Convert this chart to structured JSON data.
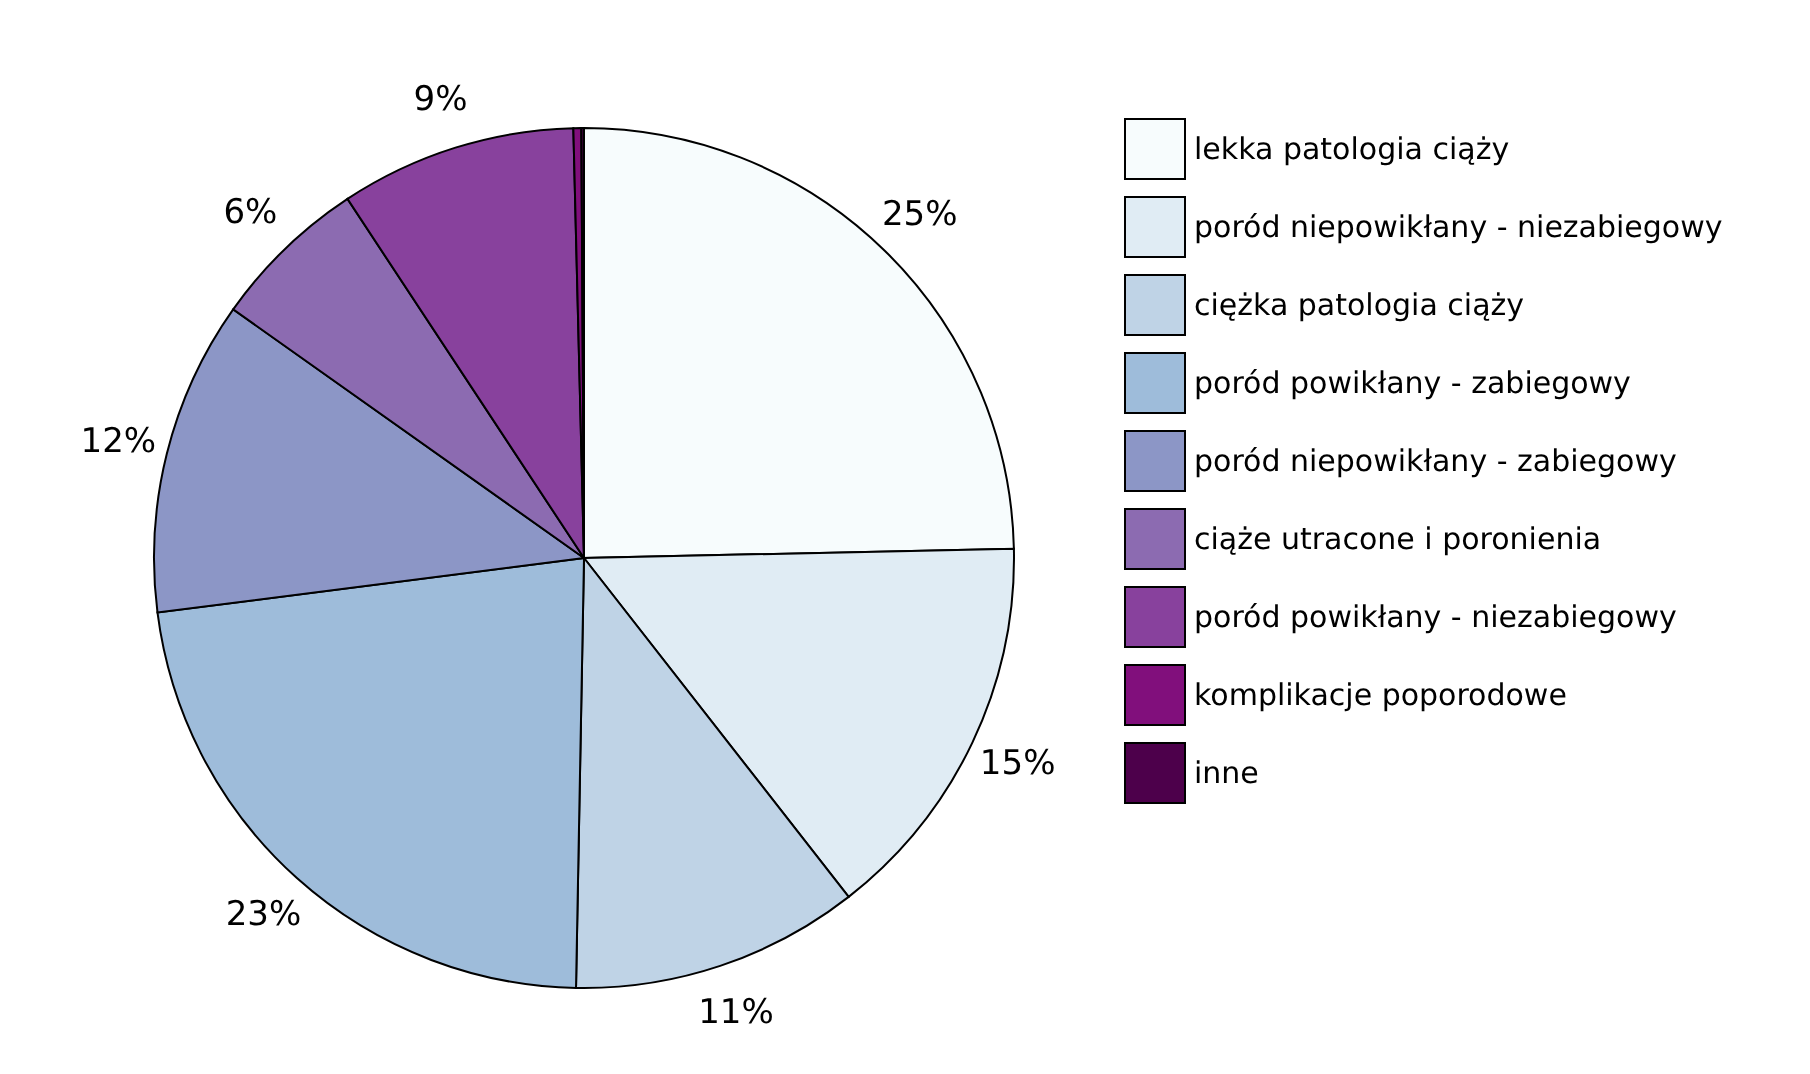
{
  "chart_data": {
    "type": "pie",
    "categories": [
      "lekka patologia ciąży",
      "poród niepowikłany - niezabiegowy",
      "ciężka patologia ciąży",
      "poród powikłany - zabiegowy",
      "poród niepowikłany - zabiegowy",
      "ciąże utracone i poronienia",
      "poród powikłany - niezabiegowy",
      "komplikacje poporodowe",
      "inne"
    ],
    "values": [
      25,
      15,
      11,
      23,
      12,
      6,
      9,
      0.3,
      0.1
    ],
    "value_labels": [
      "25%",
      "15%",
      "11%",
      "23%",
      "12%",
      "6%",
      "9%",
      null,
      null
    ],
    "colors": [
      "#f7fcfd",
      "#e0ecf4",
      "#bfd3e6",
      "#9ebcda",
      "#8c96c6",
      "#8c6bb1",
      "#88419d",
      "#810f7c",
      "#4d004b"
    ],
    "legend": "right"
  }
}
